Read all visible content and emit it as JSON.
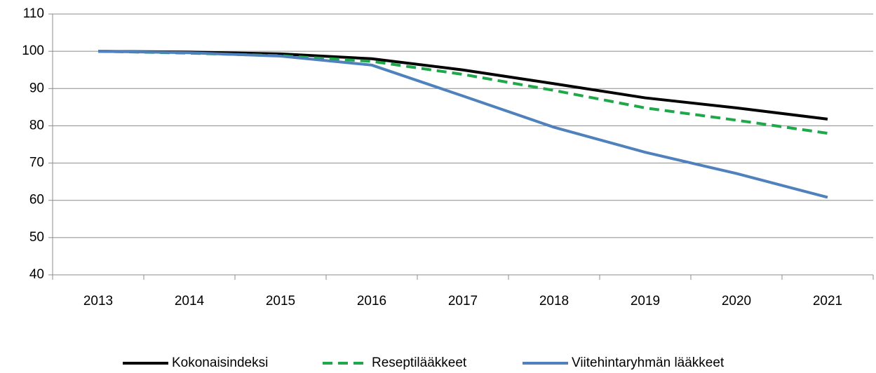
{
  "chart_data": {
    "type": "line",
    "categories": [
      "2013",
      "2014",
      "2015",
      "2016",
      "2017",
      "2018",
      "2019",
      "2020",
      "2021"
    ],
    "series": [
      {
        "name": "Kokonaisindeksi",
        "color": "#000000",
        "dashed": false,
        "values": [
          100,
          99.8,
          99.3,
          98,
          95,
          91.3,
          87.5,
          84.8,
          81.8
        ]
      },
      {
        "name": "Reseptilääkkeet",
        "color": "#1fa84a",
        "dashed": true,
        "values": [
          100,
          99.5,
          98.8,
          97.3,
          93.8,
          89.5,
          84.8,
          81.5,
          78
        ]
      },
      {
        "name": "Viitehintaryhmän lääkkeet",
        "color": "#4f81bd",
        "dashed": false,
        "values": [
          100,
          99.6,
          98.7,
          96.3,
          88,
          79.6,
          72.9,
          67.2,
          60.8
        ]
      }
    ],
    "ylim": [
      40,
      110
    ],
    "yticks": [
      40,
      50,
      60,
      70,
      80,
      90,
      100,
      110
    ],
    "grid": true,
    "legend": "bottom"
  }
}
